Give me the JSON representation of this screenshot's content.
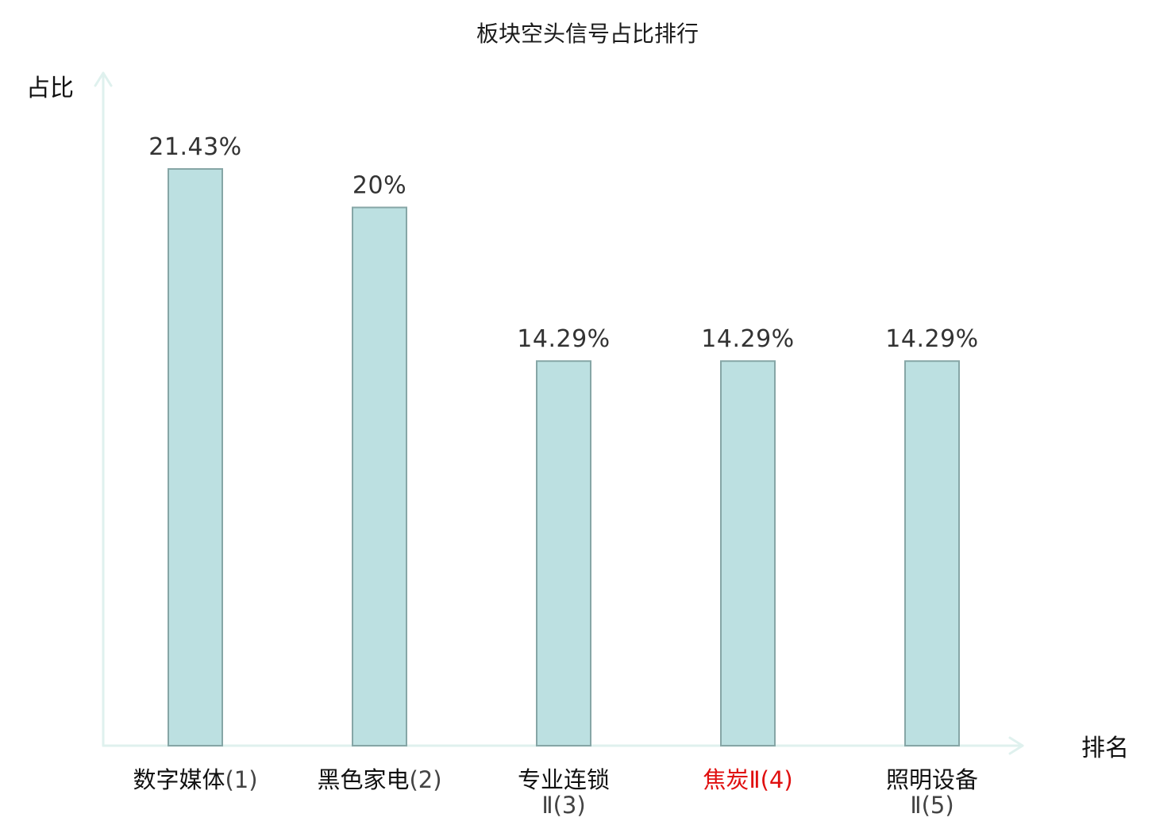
{
  "chart_data": {
    "type": "bar",
    "title": "板块空头信号占比排行",
    "ylabel": "占比",
    "xlabel": "排名",
    "grid": false,
    "ylim": [
      0,
      24
    ],
    "categories": [
      {
        "name": "数字媒体",
        "rank": "(1)",
        "highlight": false
      },
      {
        "name": "黑色家电",
        "rank": "(2)",
        "highlight": false
      },
      {
        "name": "专业连锁",
        "rank": "Ⅱ(3)",
        "highlight": false
      },
      {
        "name": "焦炭",
        "rank": "Ⅱ(4)",
        "highlight": true
      },
      {
        "name": "照明设备",
        "rank": "Ⅱ(5)",
        "highlight": false
      }
    ],
    "values": [
      21.43,
      20,
      14.29,
      14.29,
      14.29
    ],
    "value_labels": [
      "21.43%",
      "20%",
      "14.29%",
      "14.29%",
      "14.29%"
    ],
    "colors": {
      "bar_fill": "#bce0e1",
      "bar_stroke": "#86a6a6",
      "axis": "#dff1ee",
      "highlight_text": "#e01010"
    }
  }
}
